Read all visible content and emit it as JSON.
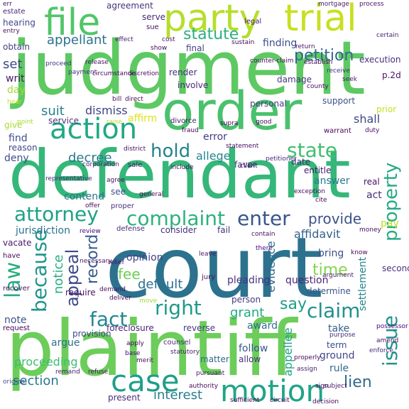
{
  "words": [
    {
      "text": "court",
      "color": "#2c728e",
      "vertical": false
    },
    {
      "text": "judgment",
      "color": "#5ec962",
      "vertical": false
    },
    {
      "text": "plaintiff",
      "color": "#6ccd5a",
      "vertical": false
    },
    {
      "text": "defendant",
      "color": "#35b779",
      "vertical": false
    },
    {
      "text": "order",
      "color": "#4ac16d",
      "vertical": false
    },
    {
      "text": "party",
      "color": "#b5de2b",
      "vertical": false
    },
    {
      "text": "trial",
      "color": "#c8e020",
      "vertical": false
    },
    {
      "text": "file",
      "color": "#52c569",
      "vertical": false
    },
    {
      "text": "action",
      "color": "#22a884",
      "vertical": false
    },
    {
      "text": "motion",
      "color": "#20a486",
      "vertical": false
    },
    {
      "text": "case",
      "color": "#1f9e89",
      "vertical": false
    },
    {
      "text": "complaint",
      "color": "#2db27d",
      "vertical": false
    },
    {
      "text": "attorney",
      "color": "#1fa187",
      "vertical": false
    },
    {
      "text": "right",
      "color": "#1f9a8a",
      "vertical": false
    },
    {
      "text": "claim",
      "color": "#21918c",
      "vertical": false
    },
    {
      "text": "fact",
      "color": "#23888e",
      "vertical": false
    },
    {
      "text": "enter",
      "color": "#39568c",
      "vertical": false
    },
    {
      "text": "state",
      "color": "#42be71",
      "vertical": false
    },
    {
      "text": "hold",
      "color": "#25838e",
      "vertical": false
    },
    {
      "text": "statute",
      "color": "#2ab07f",
      "vertical": false
    },
    {
      "text": "appellant",
      "color": "#2c728e",
      "vertical": false
    },
    {
      "text": "petition",
      "color": "#31688e",
      "vertical": false
    },
    {
      "text": "suit",
      "color": "#26828e",
      "vertical": false
    },
    {
      "text": "dismiss",
      "color": "#414487",
      "vertical": false
    },
    {
      "text": "decree",
      "color": "#29798e",
      "vertical": false
    },
    {
      "text": "allege",
      "color": "#24868e",
      "vertical": false
    },
    {
      "text": "time",
      "color": "#84d44b",
      "vertical": false
    },
    {
      "text": "provide",
      "color": "#3b528b",
      "vertical": false
    },
    {
      "text": "affidavit",
      "color": "#355f8d",
      "vertical": false
    },
    {
      "text": "fee",
      "color": "#6ece58",
      "vertical": false
    },
    {
      "text": "section",
      "color": "#2a788e",
      "vertical": false
    },
    {
      "text": "proceeding",
      "color": "#3fbc73",
      "vertical": false
    },
    {
      "text": "interest",
      "color": "#277f8e",
      "vertical": false
    },
    {
      "text": "lien",
      "color": "#31688e",
      "vertical": false
    },
    {
      "text": "say",
      "color": "#1e9c89",
      "vertical": false
    },
    {
      "text": "grant",
      "color": "#24aa83",
      "vertical": false
    },
    {
      "text": "evidence",
      "color": "#2f6c8e",
      "vertical": true
    },
    {
      "text": "question",
      "color": "#482475",
      "vertical": false
    },
    {
      "text": "answer",
      "color": "#2a788e",
      "vertical": false
    },
    {
      "text": "record",
      "color": "#365c8d",
      "vertical": true
    },
    {
      "text": "appeal",
      "color": "#3e4a89",
      "vertical": true
    },
    {
      "text": "law",
      "color": "#27ad81",
      "vertical": true
    },
    {
      "text": "because",
      "color": "#1f958b",
      "vertical": true
    },
    {
      "text": "notice",
      "color": "#29af7f",
      "vertical": true
    },
    {
      "text": "property",
      "color": "#25ab82",
      "vertical": true
    },
    {
      "text": "issue",
      "color": "#20928c",
      "vertical": true
    },
    {
      "text": "appellee",
      "color": "#1fa188",
      "vertical": true
    },
    {
      "text": "settlement",
      "color": "#25848e",
      "vertical": true
    },
    {
      "text": "default",
      "color": "#2d708e",
      "vertical": false
    },
    {
      "text": "error",
      "color": "#443a83",
      "vertical": false
    },
    {
      "text": "contend",
      "color": "#2d718e",
      "vertical": false
    },
    {
      "text": "consider",
      "color": "#46327e",
      "vertical": false
    },
    {
      "text": "jurisdiction",
      "color": "#2c728e",
      "vertical": false
    },
    {
      "text": "opinion",
      "color": "#433e85",
      "vertical": false
    },
    {
      "text": "bring",
      "color": "#3c508b",
      "vertical": false
    },
    {
      "text": "determine",
      "color": "#3a548c",
      "vertical": false
    },
    {
      "text": "reverse",
      "color": "#453882",
      "vertical": false
    },
    {
      "text": "award",
      "color": "#2e6e8e",
      "vertical": false
    },
    {
      "text": "take",
      "color": "#355e8d",
      "vertical": false
    },
    {
      "text": "follow",
      "color": "#38598c",
      "vertical": false
    },
    {
      "text": "allow",
      "color": "#46307e",
      "vertical": false
    },
    {
      "text": "term",
      "color": "#3d4e8a",
      "vertical": false
    },
    {
      "text": "ground",
      "color": "#404588",
      "vertical": false
    },
    {
      "text": "rule",
      "color": "#2f6b8e",
      "vertical": false
    },
    {
      "text": "matter",
      "color": "#31688e",
      "vertical": false
    },
    {
      "text": "pleading",
      "color": "#46337f",
      "vertical": false
    },
    {
      "text": "person",
      "color": "#443983",
      "vertical": false
    },
    {
      "text": "argue",
      "color": "#2e6f8e",
      "vertical": false
    },
    {
      "text": "provision",
      "color": "#3f4889",
      "vertical": false
    },
    {
      "text": "foreclosure",
      "color": "#482677",
      "vertical": false
    },
    {
      "text": "note",
      "color": "#3b528b",
      "vertical": false
    },
    {
      "text": "require",
      "color": "#471365",
      "vertical": false
    },
    {
      "text": "deny",
      "color": "#3c4f8a",
      "vertical": false
    },
    {
      "text": "find",
      "color": "#3e4c8a",
      "vertical": false
    },
    {
      "text": "reason",
      "color": "#404688",
      "vertical": false
    },
    {
      "text": "give",
      "color": "#a8db34",
      "vertical": false
    },
    {
      "text": "affirm",
      "color": "#dde318",
      "vertical": false
    },
    {
      "text": "shall",
      "color": "#3f4788",
      "vertical": false
    },
    {
      "text": "support",
      "color": "#3c4f8a",
      "vertical": false
    },
    {
      "text": "personal",
      "color": "#433d84",
      "vertical": false
    },
    {
      "text": "damage",
      "color": "#453781",
      "vertical": false
    },
    {
      "text": "involve",
      "color": "#482979",
      "vertical": false
    },
    {
      "text": "render",
      "color": "#472e7c",
      "vertical": false
    },
    {
      "text": "service",
      "color": "#46307e",
      "vertical": false
    },
    {
      "text": "final",
      "color": "#433e85",
      "vertical": false
    },
    {
      "text": "finding",
      "color": "#3d4d8a",
      "vertical": false
    },
    {
      "text": "date",
      "color": "#482878",
      "vertical": false
    },
    {
      "text": "entitle",
      "color": "#481b6d",
      "vertical": false
    },
    {
      "text": "real",
      "color": "#471063",
      "vertical": false
    },
    {
      "text": "act",
      "color": "#472c7a",
      "vertical": false
    },
    {
      "text": "pay",
      "color": "#bddf26",
      "vertical": false
    },
    {
      "text": "set",
      "color": "#3f4889",
      "vertical": false
    },
    {
      "text": "writ",
      "color": "#481668",
      "vertical": false
    },
    {
      "text": "day",
      "color": "#a5db36",
      "vertical": false
    },
    {
      "text": "obtain",
      "color": "#433e85",
      "vertical": false
    },
    {
      "text": "hearing",
      "color": "#3f4889",
      "vertical": false
    },
    {
      "text": "estate",
      "color": "#482576",
      "vertical": false
    },
    {
      "text": "entry",
      "color": "#471164",
      "vertical": false
    },
    {
      "text": "agreement",
      "color": "#46337f",
      "vertical": false
    },
    {
      "text": "serve",
      "color": "#472a7a",
      "vertical": false
    },
    {
      "text": "sue",
      "color": "#470e61",
      "vertical": false
    },
    {
      "text": "mortgage",
      "color": "#481a6c",
      "vertical": false
    },
    {
      "text": "process",
      "color": "#471063",
      "vertical": false
    },
    {
      "text": "certain",
      "color": "#482173",
      "vertical": false
    },
    {
      "text": "legal",
      "color": "#48186a",
      "vertical": false
    },
    {
      "text": "cost",
      "color": "#48186a",
      "vertical": false
    },
    {
      "text": "show",
      "color": "#46085c",
      "vertical": false
    },
    {
      "text": "sustain",
      "color": "#460a5d",
      "vertical": false
    },
    {
      "text": "return",
      "color": "#481467",
      "vertical": false
    },
    {
      "text": "receive",
      "color": "#472d7b",
      "vertical": false
    },
    {
      "text": "warrant",
      "color": "#46085c",
      "vertical": false
    },
    {
      "text": "duty",
      "color": "#471365",
      "vertical": false
    },
    {
      "text": "prior",
      "color": "#c5e021",
      "vertical": false
    },
    {
      "text": "divorce",
      "color": "#48186a",
      "vertical": false
    },
    {
      "text": "fraud",
      "color": "#46085c",
      "vertical": false
    },
    {
      "text": "supra",
      "color": "#440154",
      "vertical": false
    },
    {
      "text": "good",
      "color": "#46085c",
      "vertical": false
    },
    {
      "text": "statement",
      "color": "#460b5e",
      "vertical": false
    },
    {
      "text": "district",
      "color": "#470e61",
      "vertical": false
    },
    {
      "text": "favor",
      "color": "#46307e",
      "vertical": false
    },
    {
      "text": "client",
      "color": "#481467",
      "vertical": false
    },
    {
      "text": "corporation",
      "color": "#48196b",
      "vertical": false
    },
    {
      "text": "include",
      "color": "#460b5e",
      "vertical": false
    },
    {
      "text": "sale",
      "color": "#48186a",
      "vertical": false
    },
    {
      "text": "agree",
      "color": "#46085c",
      "vertical": false
    },
    {
      "text": "see",
      "color": "#3b528b",
      "vertical": false
    },
    {
      "text": "general",
      "color": "#46075a",
      "vertical": false
    },
    {
      "text": "offer",
      "color": "#460a5d",
      "vertical": false
    },
    {
      "text": "proper",
      "color": "#46307e",
      "vertical": false
    },
    {
      "text": "review",
      "color": "#45077a",
      "vertical": false
    },
    {
      "text": "defense",
      "color": "#472c7a",
      "vertical": false
    },
    {
      "text": "fail",
      "color": "#46307e",
      "vertical": false
    },
    {
      "text": "contain",
      "color": "#460b5e",
      "vertical": false
    },
    {
      "text": "vacate",
      "color": "#481a6c",
      "vertical": false
    },
    {
      "text": "have",
      "color": "#46085c",
      "vertical": false
    },
    {
      "text": "relief",
      "color": "#460a5d",
      "vertical": false
    },
    {
      "text": "leave",
      "color": "#48186a",
      "vertical": false
    },
    {
      "text": "jury",
      "color": "#471063",
      "vertical": false
    },
    {
      "text": "cite",
      "color": "#46085c",
      "vertical": false
    },
    {
      "text": "money",
      "color": "#470e61",
      "vertical": false
    },
    {
      "text": "second",
      "color": "#46327e",
      "vertical": false
    },
    {
      "text": "recover",
      "color": "#471365",
      "vertical": false
    },
    {
      "text": "demand",
      "color": "#470e61",
      "vertical": false
    },
    {
      "text": "deliver",
      "color": "#46085c",
      "vertical": false
    },
    {
      "text": "move",
      "color": "#a0da39",
      "vertical": false
    },
    {
      "text": "request",
      "color": "#440154",
      "vertical": false
    },
    {
      "text": "apply",
      "color": "#46085c",
      "vertical": false
    },
    {
      "text": "base",
      "color": "#45077a",
      "vertical": false
    },
    {
      "text": "merit",
      "color": "#460a5d",
      "vertical": false
    },
    {
      "text": "remand",
      "color": "#481a6c",
      "vertical": false
    },
    {
      "text": "refuse",
      "color": "#481467",
      "vertical": false
    },
    {
      "text": "present",
      "color": "#472c7a",
      "vertical": false
    },
    {
      "text": "sufficient",
      "color": "#440154",
      "vertical": false
    },
    {
      "text": "circuit",
      "color": "#440154",
      "vertical": false
    },
    {
      "text": "decision",
      "color": "#46085c",
      "vertical": false
    },
    {
      "text": "sign",
      "color": "#460b5e",
      "vertical": false
    },
    {
      "text": "authority",
      "color": "#46085c",
      "vertical": false
    },
    {
      "text": "pursuant",
      "color": "#48186a",
      "vertical": false
    },
    {
      "text": "amend",
      "color": "#471063",
      "vertical": false
    },
    {
      "text": "enforce",
      "color": "#472c7a",
      "vertical": false
    },
    {
      "text": "possessor",
      "color": "#45077a",
      "vertical": false
    },
    {
      "text": "purpose",
      "color": "#46307e",
      "vertical": false
    },
    {
      "text": "subject",
      "color": "#481a6c",
      "vertical": false
    },
    {
      "text": "original",
      "color": "#3c4f8a",
      "vertical": false
    },
    {
      "text": "exception",
      "color": "#460b5e",
      "vertical": false
    },
    {
      "text": "establish",
      "color": "#46085c",
      "vertical": false
    },
    {
      "text": "county",
      "color": "#471063",
      "vertical": false
    },
    {
      "text": "execution",
      "color": "#46307e",
      "vertical": false
    },
    {
      "text": "p.2d",
      "color": "#471164",
      "vertical": false
    },
    {
      "text": "effect",
      "color": "#481a6c",
      "vertical": false
    },
    {
      "text": "payment",
      "color": "#46307e",
      "vertical": false
    },
    {
      "text": "circumstance",
      "color": "#46085c",
      "vertical": false
    },
    {
      "text": "discretion",
      "color": "#460a5d",
      "vertical": false
    },
    {
      "text": "release",
      "color": "#481467",
      "vertical": false
    },
    {
      "text": "seek",
      "color": "#48186a",
      "vertical": false
    },
    {
      "text": "proceed",
      "color": "#46307e",
      "vertical": false
    },
    {
      "text": "counter-claim",
      "color": "#460b5e",
      "vertical": false
    },
    {
      "text": "representative",
      "color": "#482173",
      "vertical": false
    },
    {
      "text": "statutory",
      "color": "#48186a",
      "vertical": false
    },
    {
      "text": "petitioner",
      "color": "#472c7a",
      "vertical": false
    },
    {
      "text": "counsel",
      "color": "#472c7a",
      "vertical": false
    },
    {
      "text": "necessary",
      "color": "#481467",
      "vertical": false
    },
    {
      "text": "argument",
      "color": "#481a6c",
      "vertical": false
    },
    {
      "text": "point",
      "color": "#a8db34",
      "vertical": false
    },
    {
      "text": "raise",
      "color": "#b5de2b",
      "vertical": false
    },
    {
      "text": "bill",
      "color": "#46085c",
      "vertical": false
    },
    {
      "text": "direct",
      "color": "#460a5d",
      "vertical": false
    },
    {
      "text": "err",
      "color": "#460b5e",
      "vertical": false
    },
    {
      "text": "hear",
      "color": "#c8e020",
      "vertical": false
    },
    {
      "text": "know",
      "color": "#460a5d",
      "vertical": false
    },
    {
      "text": "there",
      "color": "#45077a",
      "vertical": false
    },
    {
      "text": "properly",
      "color": "#460a5d",
      "vertical": false
    },
    {
      "text": "assign",
      "color": "#481467",
      "vertical": false
    }
  ]
}
